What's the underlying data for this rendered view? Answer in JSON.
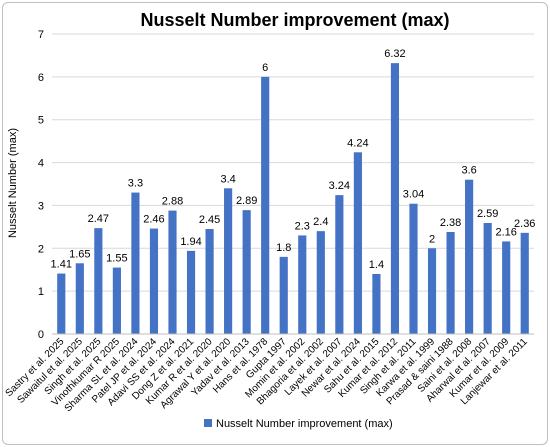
{
  "chart_data": {
    "type": "bar",
    "title": "Nusselt Number improvement (max)",
    "ylabel": "Nusselt Number (max)",
    "xlabel": "",
    "ylim": [
      0,
      7
    ],
    "yticks": [
      0,
      1,
      2,
      3,
      4,
      5,
      6,
      7
    ],
    "grid": true,
    "legend_position": "bottom",
    "bar_color": "#4472C4",
    "categories": [
      "Sastry et al. 2025",
      "Sawaitul et al. 2025",
      "Singh et al. 2025",
      "Vinothkumar R 2025",
      "Sharma SL et al. 2024",
      "Patel JP et al. 2024",
      "Adavi SS et al. 2024",
      "Dong Z et al. 2021",
      "Kumar R et al. 2020",
      "Agrawal Y et al. 2020",
      "Yadav et al. 2013",
      "Hans et al. 1978",
      "Gupta 1997",
      "Momin et al. 2002",
      "Bhagoria et al. 2002",
      "Layek et al. 2007",
      "Newar et al. 2024",
      "Sahu et al. 2015",
      "Kumar et al. 2012",
      "Singh et al. 2011",
      "Karwa et al. 1999",
      "Prasad & saini 1988",
      "Saini et al. 2008",
      "Aharwal et al. 2007",
      "Kumar et al. 2009",
      "Lanjewar et al. 2011"
    ],
    "series": [
      {
        "name": "Nusselt Number improvement (max)",
        "values": [
          1.41,
          1.65,
          2.47,
          1.55,
          3.3,
          2.46,
          2.88,
          1.94,
          2.45,
          3.4,
          2.89,
          6,
          1.8,
          2.3,
          2.4,
          3.24,
          4.24,
          1.4,
          6.32,
          3.04,
          2,
          2.38,
          3.6,
          2.59,
          2.16,
          2.36
        ]
      }
    ],
    "data_labels": [
      "1.41",
      "1.65",
      "2.47",
      "1.55",
      "3.3",
      "2.46",
      "2.88",
      "1.94",
      "2.45",
      "3.4",
      "2.89",
      "6",
      "1.8",
      "2.3",
      "2.4",
      "3.24",
      "4.24",
      "1.4",
      "6.32",
      "3.04",
      "2",
      "2.38",
      "3.6",
      "2.59",
      "2.16",
      "2.36"
    ]
  }
}
